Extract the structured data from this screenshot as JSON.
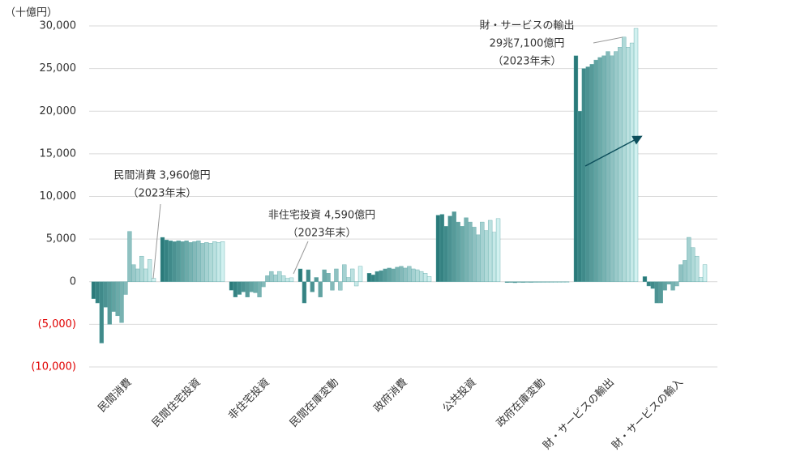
{
  "chart_data": {
    "type": "bar",
    "unit_label": "（十億円）",
    "ylim": [
      -10000,
      30000
    ],
    "yticks": [
      {
        "value": -10000,
        "label": "(10,000)"
      },
      {
        "value": -5000,
        "label": "(5,000)"
      },
      0,
      {
        "value": 5000,
        "label": "5,000"
      },
      {
        "value": 10000,
        "label": "10,000"
      },
      {
        "value": 15000,
        "label": "15,000"
      },
      {
        "value": 20000,
        "label": "20,000"
      },
      {
        "value": 25000,
        "label": "25,000"
      },
      {
        "value": 30000,
        "label": "30,000"
      }
    ],
    "negative_tick_color": "#e00000",
    "grid": true,
    "colors": [
      "#2a7a7a",
      "#d2f1f0"
    ],
    "groups": [
      {
        "name": "民間消費",
        "values": [
          -2000,
          -2500,
          -7200,
          -3000,
          -5000,
          -3500,
          -4000,
          -4800,
          -1500,
          5900,
          2000,
          1500,
          3000,
          1500,
          2600,
          396
        ]
      },
      {
        "name": "民間住宅投資",
        "values": [
          5200,
          4900,
          4800,
          4700,
          4800,
          4700,
          4800,
          4600,
          4700,
          4800,
          4500,
          4600,
          4500,
          4700,
          4600,
          4700
        ]
      },
      {
        "name": "非住宅投資",
        "values": [
          -1000,
          -1800,
          -1500,
          -1200,
          -1800,
          -1200,
          -1300,
          -1800,
          -600,
          700,
          1200,
          800,
          1200,
          700,
          400,
          459
        ]
      },
      {
        "name": "民間在庫変動",
        "values": [
          1500,
          -2500,
          1400,
          -1200,
          500,
          -1800,
          1400,
          1000,
          -1000,
          1500,
          -1000,
          2000,
          500,
          1500,
          -500,
          1800
        ]
      },
      {
        "name": "政府消費",
        "values": [
          1000,
          800,
          1200,
          1300,
          1500,
          1600,
          1500,
          1700,
          1800,
          1600,
          1800,
          1500,
          1400,
          1200,
          1000,
          600
        ]
      },
      {
        "name": "公共投資",
        "values": [
          7800,
          7900,
          6500,
          7700,
          8200,
          7000,
          6500,
          7500,
          7000,
          6400,
          5500,
          7000,
          6000,
          7200,
          5800,
          7400
        ]
      },
      {
        "name": "政府在庫変動",
        "values": [
          -100,
          -80,
          -120,
          -60,
          -100,
          -50,
          -90,
          -70,
          -40,
          -60,
          -30,
          -50,
          -20,
          -40,
          -30,
          -60
        ]
      },
      {
        "name": "財・サービスの輸出",
        "values": [
          26500,
          20000,
          25000,
          25200,
          25500,
          26000,
          26300,
          26500,
          27000,
          26500,
          27000,
          27500,
          28700,
          27500,
          28000,
          29710
        ]
      },
      {
        "name": "財・サービスの輸入",
        "values": [
          600,
          -500,
          -800,
          -2500,
          -2500,
          -1000,
          -300,
          -1000,
          -500,
          2000,
          2500,
          5200,
          4000,
          3000,
          500,
          2000
        ]
      }
    ],
    "annotations": [
      {
        "lines": [
          "民間消費 3,960億円",
          "（2023年末）"
        ]
      },
      {
        "lines": [
          "非住宅投資 4,590億円",
          "（2023年末）"
        ]
      },
      {
        "lines": [
          "財・サービスの輸出",
          "29兆7,100億円",
          "（2023年末）"
        ]
      }
    ]
  }
}
